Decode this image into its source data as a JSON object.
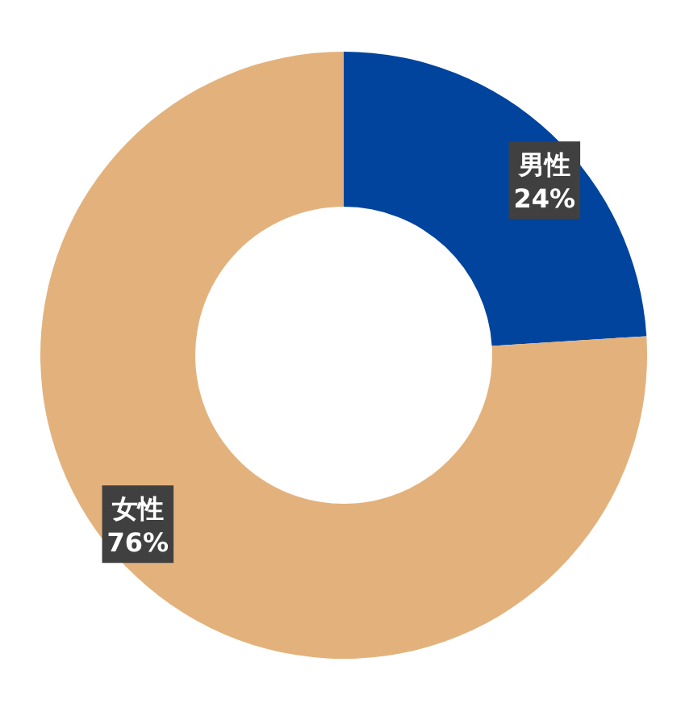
{
  "chart_data": {
    "type": "donut",
    "categories": [
      "男性",
      "女性"
    ],
    "values": [
      24,
      76
    ],
    "colors": [
      "#00449e",
      "#e3b27c"
    ],
    "value_labels": [
      "24%",
      "76%"
    ]
  }
}
